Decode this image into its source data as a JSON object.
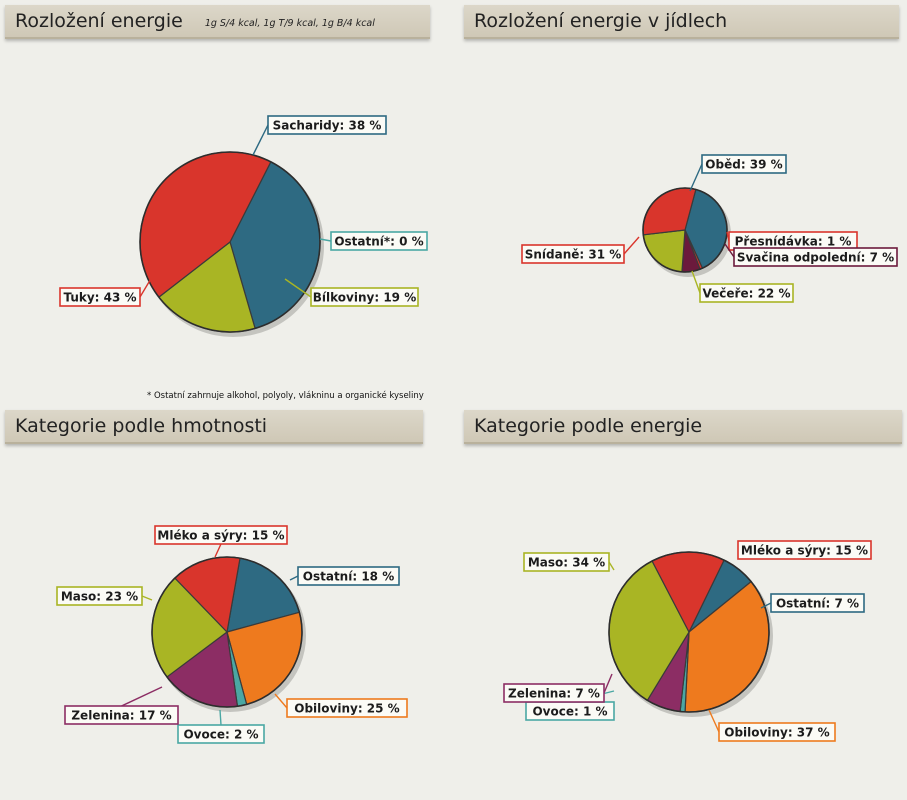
{
  "colors": {
    "blue": "#2e6a82",
    "red": "#d9352c",
    "olive": "#a9b524",
    "orange": "#ee7a1e",
    "purple": "#8c2d64",
    "teal": "#4aa7a3",
    "darkpurple": "#6b1a3c"
  },
  "chart_data": [
    {
      "type": "pie",
      "title": "Rozložení energie",
      "subtitle": "1g S/4 kcal, 1g T/9 kcal, 1g B/4 kcal",
      "footnote": "* Ostatní zahrnuje alkohol, polyoly, vlákninu a organické kyseliny",
      "slices": [
        {
          "name": "Sacharidy",
          "label": "Sacharidy: 38 %",
          "value": 38,
          "color": "#2e6a82"
        },
        {
          "name": "Ostatní*",
          "label": "Ostatní*: 0 %",
          "value": 0,
          "color": "#4aa7a3"
        },
        {
          "name": "Bílkoviny",
          "label": "Bílkoviny: 19 %",
          "value": 19,
          "color": "#a9b524"
        },
        {
          "name": "Tuky",
          "label": "Tuky: 43 %",
          "value": 43,
          "color": "#d9352c"
        }
      ]
    },
    {
      "type": "pie",
      "title": "Rozložení energie v jídlech",
      "slices": [
        {
          "name": "Oběd",
          "label": "Oběd: 39 %",
          "value": 39,
          "color": "#2e6a82"
        },
        {
          "name": "Přesnídávka",
          "label": "Přesnídávka: 1 %",
          "value": 1,
          "color": "#d9352c"
        },
        {
          "name": "Svačina odpolední",
          "label": "Svačina odpolední: 7 %",
          "value": 7,
          "color": "#6b1a3c"
        },
        {
          "name": "Večeře",
          "label": "Večeře: 22 %",
          "value": 22,
          "color": "#a9b524"
        },
        {
          "name": "Snídaně",
          "label": "Snídaně: 31 %",
          "value": 31,
          "color": "#d9352c"
        }
      ]
    },
    {
      "type": "pie",
      "title": "Kategorie podle hmotnosti",
      "slices": [
        {
          "name": "Ostatní",
          "label": "Ostatní: 18 %",
          "value": 18,
          "color": "#2e6a82"
        },
        {
          "name": "Obiloviny",
          "label": "Obiloviny: 25 %",
          "value": 25,
          "color": "#ee7a1e"
        },
        {
          "name": "Ovoce",
          "label": "Ovoce: 2 %",
          "value": 2,
          "color": "#4aa7a3"
        },
        {
          "name": "Zelenina",
          "label": "Zelenina: 17 %",
          "value": 17,
          "color": "#8c2d64"
        },
        {
          "name": "Maso",
          "label": "Maso: 23 %",
          "value": 23,
          "color": "#a9b524"
        },
        {
          "name": "Mléko a sýry",
          "label": "Mléko a sýry: 15 %",
          "value": 15,
          "color": "#d9352c"
        }
      ]
    },
    {
      "type": "pie",
      "title": "Kategorie podle energie",
      "slices": [
        {
          "name": "Ostatní",
          "label": "Ostatní: 7 %",
          "value": 7,
          "color": "#2e6a82"
        },
        {
          "name": "Obiloviny",
          "label": "Obiloviny: 37 %",
          "value": 37,
          "color": "#ee7a1e"
        },
        {
          "name": "Ovoce",
          "label": "Ovoce: 1 %",
          "value": 1,
          "color": "#4aa7a3"
        },
        {
          "name": "Zelenina",
          "label": "Zelenina: 7 %",
          "value": 7,
          "color": "#8c2d64"
        },
        {
          "name": "Maso",
          "label": "Maso: 34 %",
          "value": 34,
          "color": "#a9b524"
        },
        {
          "name": "Mléko a sýry",
          "label": "Mléko a sýry: 15 %",
          "value": 15,
          "color": "#d9352c"
        }
      ]
    }
  ]
}
